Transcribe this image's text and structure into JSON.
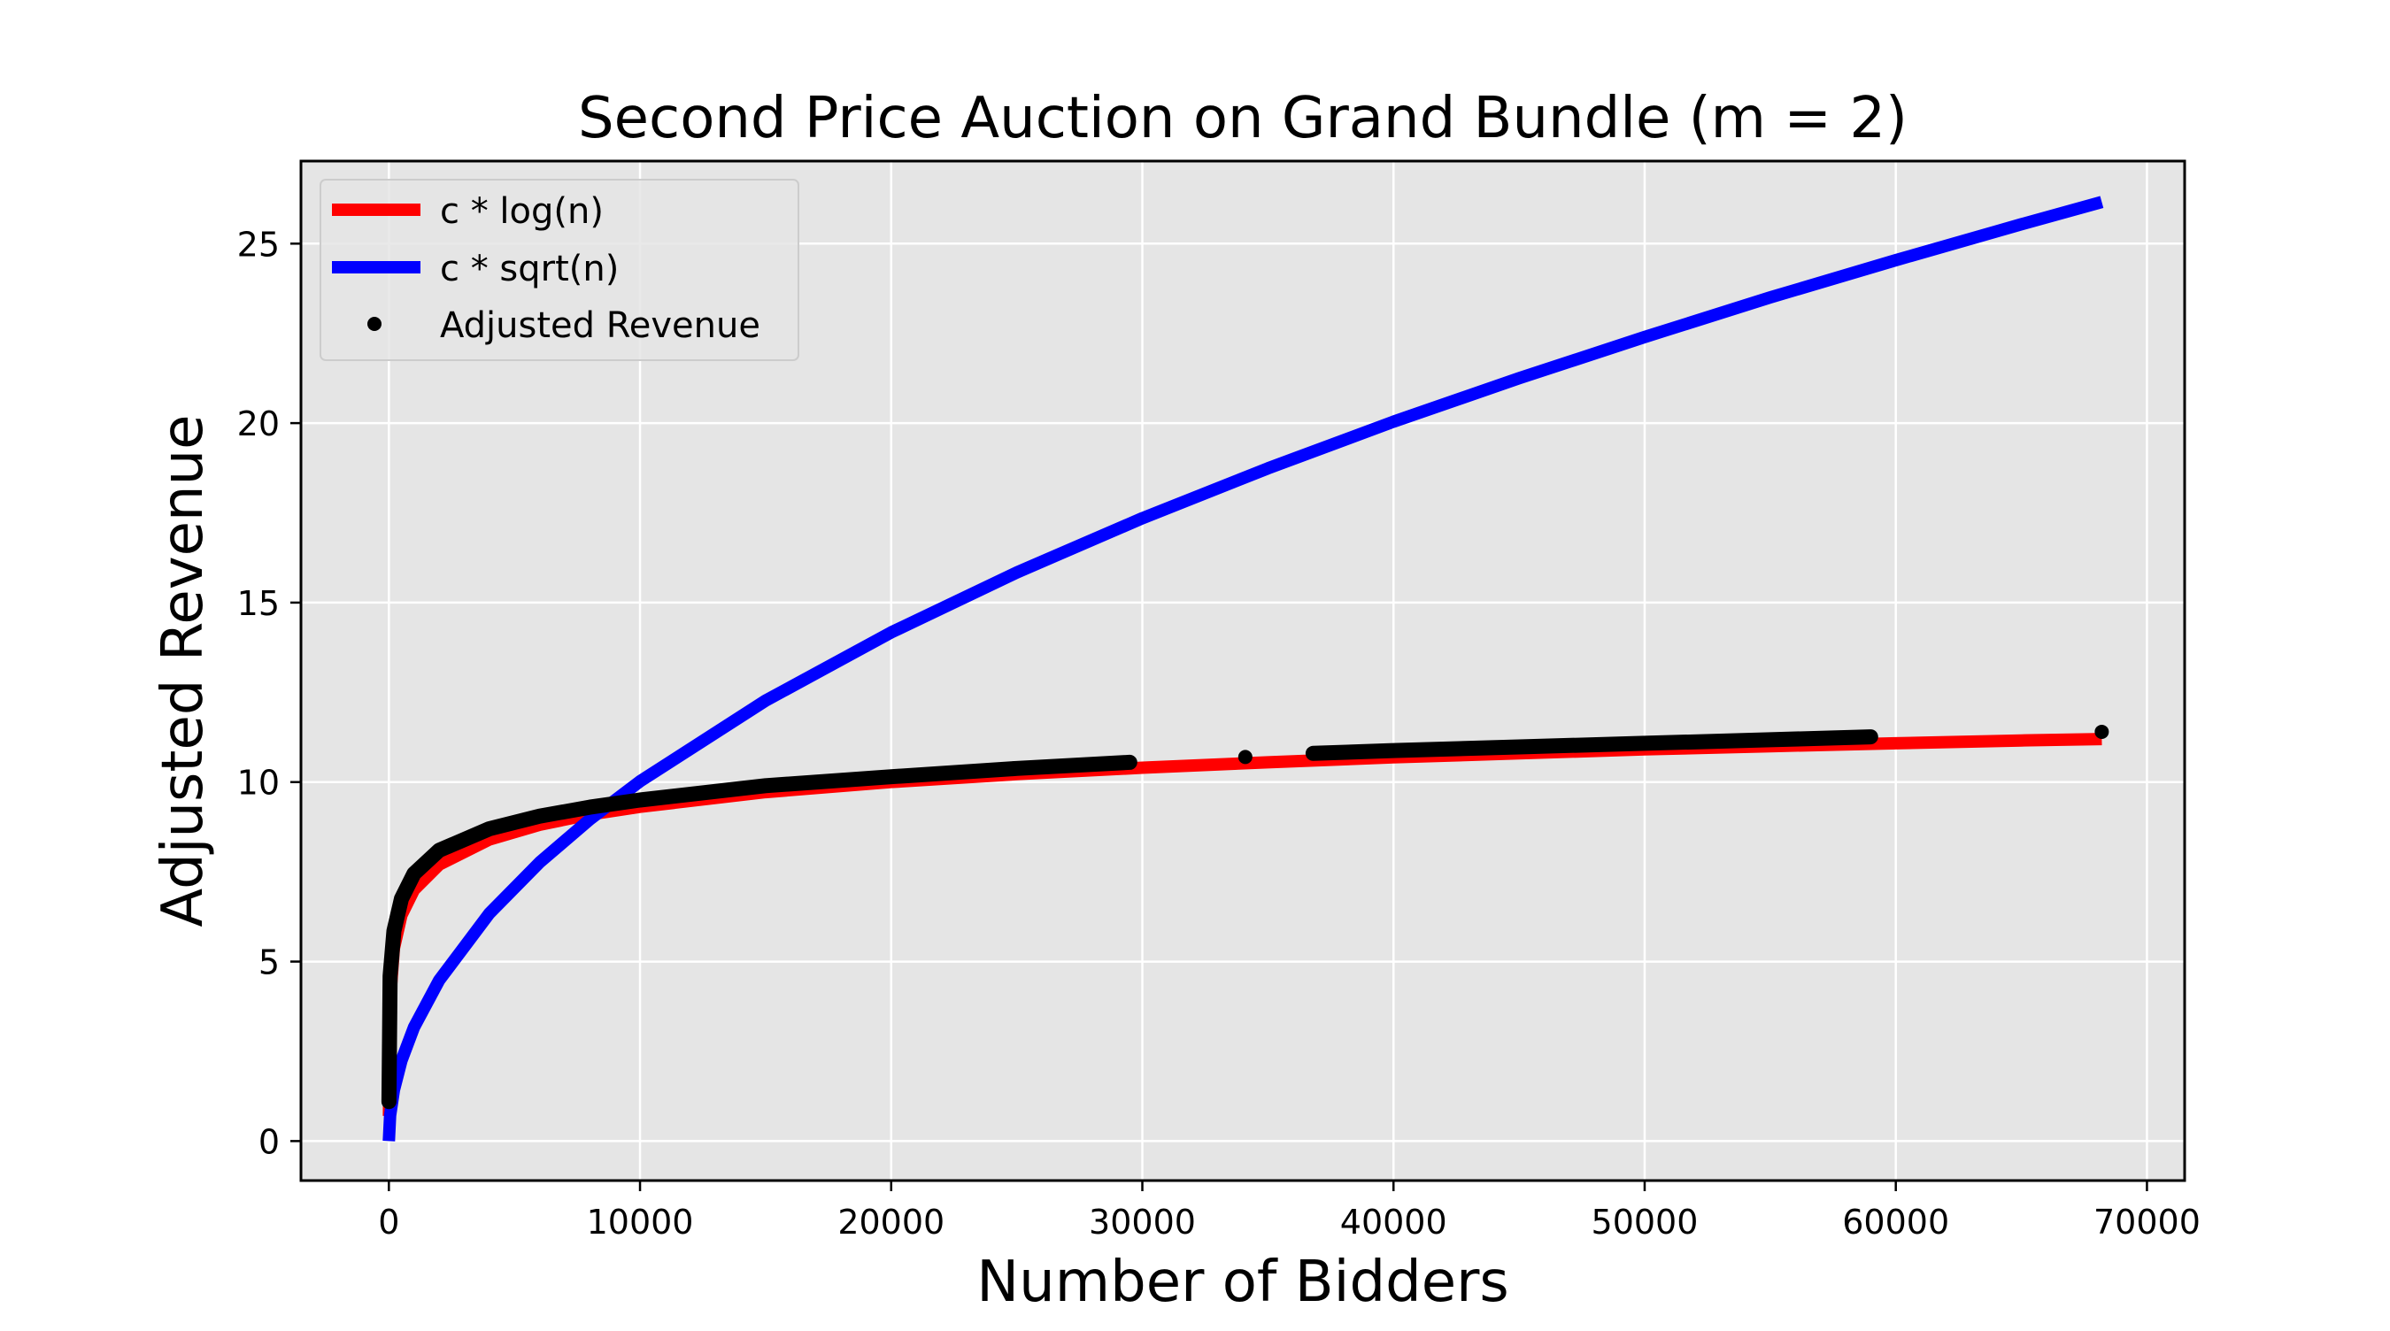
{
  "chart_data": {
    "type": "line",
    "title": "Second Price Auction on Grand Bundle (m = 2)",
    "xlabel": "Number of Bidders",
    "ylabel": "Adjusted Revenue",
    "xlim": [
      -3500,
      71500
    ],
    "ylim": [
      -1.1,
      27.3
    ],
    "xticks": [
      0,
      10000,
      20000,
      30000,
      40000,
      50000,
      60000,
      70000
    ],
    "yticks": [
      0,
      5,
      10,
      15,
      20,
      25
    ],
    "grid": true,
    "plot_background": "#e5e5e5",
    "legend_position": "top-left",
    "series": [
      {
        "name": "c * log(n)",
        "kind": "line",
        "color": "#ff0000",
        "x": [
          2,
          50,
          200,
          500,
          1000,
          2000,
          4000,
          6000,
          8000,
          10000,
          15000,
          20000,
          25000,
          30000,
          35000,
          40000,
          45000,
          50000,
          55000,
          60000,
          65000,
          68200
        ],
        "y": [
          0.7,
          3.96,
          5.37,
          6.29,
          7.0,
          7.7,
          8.4,
          8.81,
          9.1,
          9.31,
          9.72,
          10.0,
          10.22,
          10.4,
          10.55,
          10.69,
          10.8,
          10.91,
          11.0,
          11.08,
          11.16,
          11.2
        ]
      },
      {
        "name": "c * sqrt(n)",
        "kind": "line",
        "color": "#0000ff",
        "x": [
          0,
          50,
          200,
          500,
          1000,
          2000,
          4000,
          6000,
          8000,
          10000,
          15000,
          20000,
          25000,
          30000,
          35000,
          40000,
          45000,
          50000,
          55000,
          60000,
          65000,
          68200
        ],
        "y": [
          0,
          0.71,
          1.42,
          2.24,
          3.17,
          4.48,
          6.34,
          7.76,
          8.96,
          10.02,
          12.27,
          14.17,
          15.84,
          17.35,
          18.74,
          20.04,
          21.25,
          22.4,
          23.5,
          24.54,
          25.54,
          26.16
        ]
      },
      {
        "name": "Adjusted Revenue",
        "kind": "scatter",
        "color": "#000000",
        "segments": [
          {
            "x": [
              2,
              50,
              200,
              500,
              1000,
              2000,
              4000,
              6000,
              8000,
              10000,
              15000,
              20000,
              25000,
              29500
            ],
            "y": [
              1.1,
              4.6,
              5.85,
              6.75,
              7.45,
              8.1,
              8.7,
              9.05,
              9.3,
              9.5,
              9.9,
              10.15,
              10.38,
              10.55
            ]
          },
          {
            "x": [
              34100
            ],
            "y": [
              10.7
            ]
          },
          {
            "x": [
              36800,
              40000,
              45000,
              50000,
              55000,
              59000
            ],
            "y": [
              10.8,
              10.88,
              10.98,
              11.08,
              11.18,
              11.26
            ]
          },
          {
            "x": [
              68200
            ],
            "y": [
              11.4
            ]
          }
        ]
      }
    ]
  }
}
